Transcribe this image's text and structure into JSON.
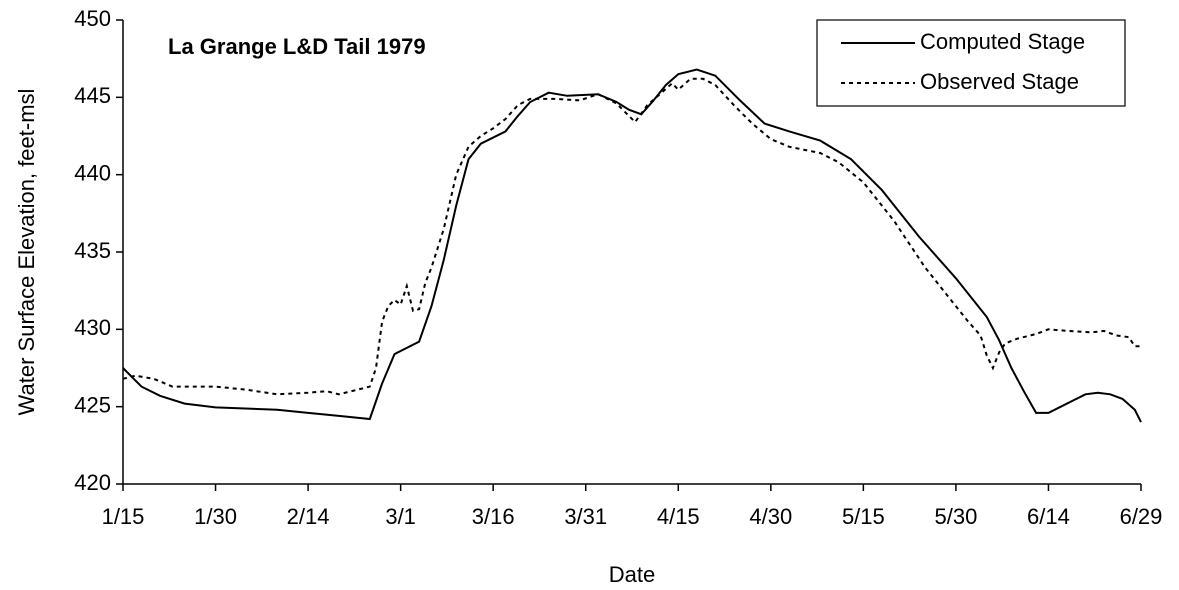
{
  "chart_data": {
    "type": "line",
    "title": "La Grange L&D Tail 1979",
    "x_label": "Date",
    "y_label": "Water Surface Elevation, feet-msl",
    "xlim": [
      "1/15",
      "6/29"
    ],
    "xticks": [
      "1/15",
      "1/30",
      "2/14",
      "3/1",
      "3/16",
      "3/31",
      "4/15",
      "4/30",
      "5/15",
      "5/30",
      "6/14",
      "6/29"
    ],
    "ylim": [
      420,
      450
    ],
    "yticks": [
      420,
      425,
      430,
      435,
      440,
      445,
      450
    ],
    "legend": "upper right",
    "series": [
      {
        "name": "Computed Stage",
        "color": "#000000",
        "style": "solid",
        "x": [
          "1/15",
          "1/18",
          "1/21",
          "1/25",
          "1/30",
          "2/9",
          "2/14",
          "2/19",
          "2/24",
          "2/26",
          "2/28",
          "3/2",
          "3/4",
          "3/6",
          "3/8",
          "3/10",
          "3/12",
          "3/14",
          "3/18",
          "3/20",
          "3/22",
          "3/25",
          "3/28",
          "4/2",
          "4/5",
          "4/7",
          "4/9",
          "4/11",
          "4/13",
          "4/15",
          "4/18",
          "4/21",
          "4/25",
          "4/29",
          "5/3",
          "5/8",
          "5/13",
          "5/18",
          "5/24",
          "5/30",
          "6/4",
          "6/6",
          "6/8",
          "6/10",
          "6/12",
          "6/14",
          "6/16",
          "6/18",
          "6/20",
          "6/22",
          "6/24",
          "6/26",
          "6/28",
          "6/29"
        ],
        "values": [
          427.5,
          426.3,
          425.7,
          425.2,
          424.95,
          424.8,
          424.6,
          424.4,
          424.2,
          426.5,
          428.4,
          428.8,
          429.2,
          431.5,
          434.5,
          438.0,
          441.0,
          442.0,
          442.8,
          443.8,
          444.7,
          445.3,
          445.1,
          445.2,
          444.7,
          444.2,
          443.9,
          444.8,
          445.8,
          446.5,
          446.8,
          446.4,
          444.8,
          443.3,
          442.8,
          442.2,
          441.0,
          439.0,
          436.0,
          433.3,
          430.8,
          429.3,
          427.5,
          426.0,
          424.6,
          424.6,
          425.0,
          425.4,
          425.8,
          425.9,
          425.8,
          425.5,
          424.8,
          424.0
        ]
      },
      {
        "name": "Observed Stage",
        "color": "#000000",
        "style": "dotted",
        "x": [
          "1/15",
          "1/17",
          "1/20",
          "1/23",
          "1/30",
          "2/4",
          "2/9",
          "2/14",
          "2/17",
          "2/19",
          "2/22",
          "2/24",
          "2/25",
          "2/26",
          "2/27",
          "2/28",
          "3/1",
          "3/2",
          "3/3",
          "3/4",
          "3/5",
          "3/6",
          "3/8",
          "3/10",
          "3/12",
          "3/14",
          "3/16",
          "3/18",
          "3/20",
          "3/22",
          "3/26",
          "3/30",
          "4/2",
          "4/5",
          "4/7",
          "4/8",
          "4/10",
          "4/12",
          "4/14",
          "4/15",
          "4/17",
          "4/19",
          "4/21",
          "4/24",
          "4/27",
          "4/30",
          "5/3",
          "5/8",
          "5/11",
          "5/15",
          "5/20",
          "5/25",
          "5/29",
          "6/1",
          "6/3",
          "6/4",
          "6/5",
          "6/6",
          "6/7",
          "6/9",
          "6/12",
          "6/14",
          "6/17",
          "6/21",
          "6/23",
          "6/25",
          "6/27",
          "6/28",
          "6/29"
        ],
        "values": [
          426.8,
          427.0,
          426.8,
          426.3,
          426.3,
          426.1,
          425.8,
          425.9,
          426.0,
          425.8,
          426.1,
          426.3,
          427.5,
          430.5,
          431.5,
          431.9,
          431.6,
          432.8,
          431.2,
          431.3,
          433.0,
          434.0,
          436.5,
          440.0,
          441.8,
          442.5,
          443.0,
          443.6,
          444.5,
          444.9,
          444.9,
          444.8,
          445.2,
          444.6,
          443.8,
          443.4,
          444.5,
          445.2,
          445.9,
          445.5,
          446.2,
          446.2,
          445.8,
          444.5,
          443.3,
          442.3,
          441.8,
          441.4,
          440.8,
          439.5,
          437.0,
          434.0,
          432.0,
          430.5,
          429.6,
          428.3,
          427.5,
          428.5,
          429.1,
          429.4,
          429.7,
          430.0,
          429.9,
          429.8,
          429.9,
          429.6,
          429.5,
          428.9,
          428.9
        ]
      }
    ]
  }
}
